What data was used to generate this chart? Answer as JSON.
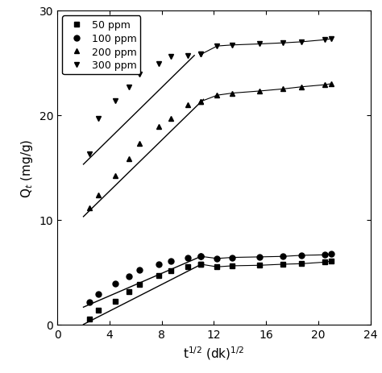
{
  "title": "",
  "xlabel": "t$^{1/2}$ (dk)$^{1/2}$",
  "ylabel": "Q$_t$ (mg/g)",
  "xlim": [
    0,
    24
  ],
  "ylim": [
    0,
    30
  ],
  "xticks": [
    0,
    4,
    8,
    12,
    16,
    20,
    24
  ],
  "yticks": [
    0,
    10,
    20,
    30
  ],
  "series": [
    {
      "label": "50 ppm",
      "marker": "s",
      "x_pts": [
        2.45,
        3.16,
        4.47,
        5.48,
        6.32,
        7.75,
        8.72,
        10.0,
        11.0,
        12.25,
        13.4,
        15.5,
        17.3,
        18.7,
        20.5,
        21.0
      ],
      "y_pts": [
        0.55,
        1.35,
        2.2,
        3.1,
        3.85,
        4.65,
        5.1,
        5.55,
        5.75,
        5.5,
        5.6,
        5.65,
        5.75,
        5.8,
        5.95,
        6.05
      ],
      "fit_x": [
        2.0,
        11.2
      ],
      "fit_y": [
        0.0,
        5.85
      ],
      "flat_start_idx": 9
    },
    {
      "label": "100 ppm",
      "marker": "o",
      "x_pts": [
        2.45,
        3.16,
        4.47,
        5.48,
        6.32,
        7.75,
        8.72,
        10.0,
        11.0,
        12.25,
        13.4,
        15.5,
        17.3,
        18.7,
        20.5,
        21.0
      ],
      "y_pts": [
        2.1,
        2.9,
        3.9,
        4.6,
        5.2,
        5.75,
        6.05,
        6.35,
        6.5,
        6.3,
        6.4,
        6.45,
        6.5,
        6.6,
        6.65,
        6.75
      ],
      "fit_x": [
        2.0,
        11.2
      ],
      "fit_y": [
        1.65,
        6.6
      ],
      "flat_start_idx": 9
    },
    {
      "label": "200 ppm",
      "marker": "^",
      "x_pts": [
        2.45,
        3.16,
        4.47,
        5.48,
        6.32,
        7.75,
        8.72,
        10.0,
        11.0,
        12.25,
        13.4,
        15.5,
        17.3,
        18.7,
        20.5,
        21.0
      ],
      "y_pts": [
        11.1,
        12.4,
        14.2,
        15.8,
        17.3,
        18.9,
        19.7,
        21.0,
        21.3,
        21.9,
        22.1,
        22.3,
        22.5,
        22.7,
        22.9,
        23.0
      ],
      "fit_x": [
        2.0,
        11.2
      ],
      "fit_y": [
        10.3,
        21.5
      ],
      "flat_start_idx": 9
    },
    {
      "label": "300 ppm",
      "marker": "v",
      "x_pts": [
        2.45,
        3.16,
        4.47,
        5.48,
        6.32,
        7.75,
        8.72,
        10.0,
        11.0,
        12.25,
        13.4,
        15.5,
        17.3,
        18.7,
        20.5,
        21.0
      ],
      "y_pts": [
        16.3,
        19.7,
        21.4,
        22.7,
        23.9,
        24.9,
        25.6,
        25.7,
        25.8,
        26.6,
        26.7,
        26.8,
        26.9,
        27.0,
        27.2,
        27.3
      ],
      "fit_x": [
        2.0,
        10.5
      ],
      "fit_y": [
        15.3,
        25.7
      ],
      "flat_start_idx": 9
    }
  ],
  "legend_markers": [
    "s",
    "o",
    "^",
    "v"
  ],
  "legend_labels": [
    "50 ppm",
    "100 ppm",
    "200 ppm",
    "300 ppm"
  ],
  "background_color": "#ffffff",
  "figsize": [
    4.74,
    4.64
  ],
  "dpi": 100
}
